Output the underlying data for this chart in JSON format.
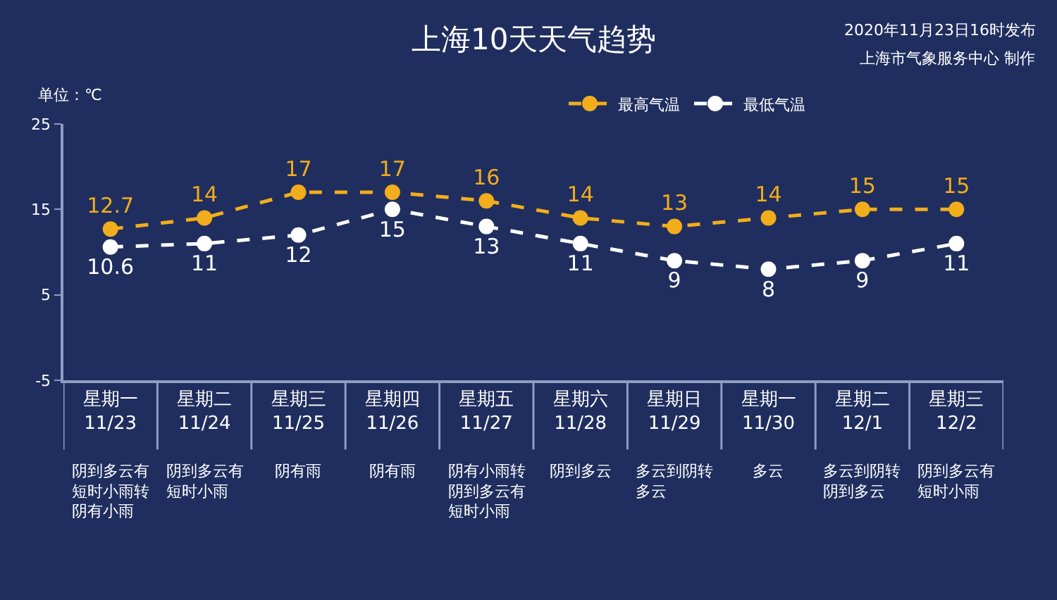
{
  "chart_data": {
    "type": "line",
    "title": "上海10天天气趋势",
    "ylabel": "单位：℃",
    "categories": [
      "星期一\n11/23",
      "星期二\n11/24",
      "星期三\n11/25",
      "星期四\n11/26",
      "星期五\n11/27",
      "星期六\n11/28",
      "星期日\n11/29",
      "星期一\n11/30",
      "星期二\n12/1",
      "星期三\n12/2"
    ],
    "series": [
      {
        "name": "最高气温",
        "color": "#f2ad1c",
        "values": [
          12.7,
          14,
          17,
          17,
          16,
          14,
          13,
          14,
          15,
          15
        ]
      },
      {
        "name": "最低气温",
        "color": "#ffffff",
        "values": [
          10.6,
          11,
          12,
          15,
          13,
          11,
          9,
          8,
          9,
          11
        ]
      }
    ],
    "ylim": [
      -5,
      25
    ],
    "yticks": [
      -5,
      5,
      15,
      25
    ],
    "grid": false,
    "legend": "top",
    "marker": "circle",
    "line_style": "dashed",
    "data_labels": true,
    "annotations": [
      "2020年11月23日16时发布",
      "上海市气象服务中心 制作",
      "阴到多云有短时小雨转阴有小雨",
      "阴到多云有短时小雨",
      "阴有雨",
      "阴有雨",
      "阴有小雨转阴到多云有短时小雨",
      "阴到多云",
      "多云到阴转多云",
      "多云",
      "多云到阴转阴到多云",
      "阴到多云有短时小雨"
    ]
  }
}
